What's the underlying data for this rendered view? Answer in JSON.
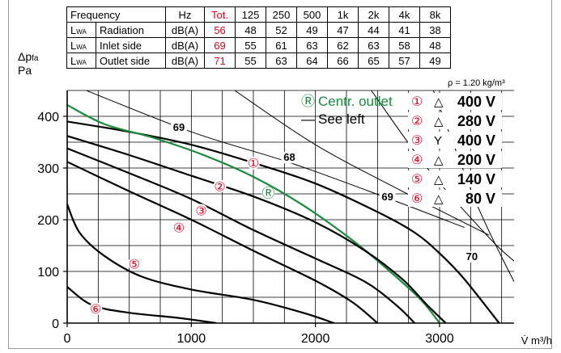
{
  "table": {
    "header": {
      "frequency": "Frequency",
      "unit": "Hz",
      "total": "Tot.",
      "bands": [
        "125",
        "250",
        "500",
        "1k",
        "2k",
        "4k",
        "8k"
      ]
    },
    "rows": [
      {
        "symbol": "L",
        "sub": "WA",
        "label": "Radiation",
        "unit": "dB(A)",
        "total": "56",
        "values": [
          "48",
          "52",
          "49",
          "47",
          "44",
          "41",
          "38"
        ]
      },
      {
        "symbol": "L",
        "sub": "WA",
        "label": "Inlet side",
        "unit": "dB(A)",
        "total": "69",
        "values": [
          "55",
          "61",
          "63",
          "62",
          "63",
          "58",
          "48"
        ]
      },
      {
        "symbol": "L",
        "sub": "WA",
        "label": "Outlet side",
        "unit": "dB(A)",
        "total": "71",
        "values": [
          "55",
          "63",
          "64",
          "66",
          "65",
          "57",
          "49"
        ]
      }
    ]
  },
  "density_note": "ρ = 1.20 kg/m³",
  "chart_data": {
    "type": "line",
    "ylabel_main": "Δp",
    "ylabel_sub": "fa",
    "ylabel_unit": "Pa",
    "xlabel": "V̇ m³/h",
    "xlim": [
      0,
      3600
    ],
    "ylim": [
      0,
      450
    ],
    "xticks": [
      0,
      1000,
      2000,
      3000
    ],
    "yticks": [
      0,
      100,
      200,
      300,
      400
    ],
    "grid": true,
    "legend": [
      {
        "mark": "Ⓡ",
        "text": "Centr. outlet",
        "color": "#1a8a3c"
      },
      {
        "mark": "—",
        "text": "See left",
        "color": "#000000"
      }
    ],
    "speeds": [
      {
        "num": "①",
        "symbol": "△",
        "voltage": "400 V"
      },
      {
        "num": "②",
        "symbol": "△",
        "voltage": "280 V"
      },
      {
        "num": "③",
        "symbol": "Y",
        "voltage": "400 V"
      },
      {
        "num": "④",
        "symbol": "△",
        "voltage": "200 V"
      },
      {
        "num": "⑤",
        "symbol": "△",
        "voltage": "140 V"
      },
      {
        "num": "⑥",
        "symbol": "△",
        "voltage": "80 V"
      }
    ],
    "series": [
      {
        "id": "1",
        "color": "#000000",
        "x": [
          0,
          500,
          1000,
          1500,
          2000,
          2500,
          2800,
          3000,
          3200,
          3480
        ],
        "y": [
          390,
          370,
          345,
          310,
          270,
          215,
          175,
          135,
          85,
          0
        ]
      },
      {
        "id": "centr",
        "color": "#1a8a3c",
        "x": [
          0,
          300,
          700,
          1100,
          1500,
          1900,
          2300,
          2600,
          2850,
          3000
        ],
        "y": [
          422,
          385,
          358,
          325,
          283,
          228,
          160,
          100,
          45,
          0
        ]
      },
      {
        "id": "2",
        "color": "#000000",
        "x": [
          0,
          500,
          1000,
          1500,
          2000,
          2400,
          2700,
          2900,
          3050
        ],
        "y": [
          362,
          325,
          285,
          245,
          195,
          140,
          85,
          35,
          0
        ]
      },
      {
        "id": "3",
        "color": "#000000",
        "x": [
          0,
          500,
          1000,
          1500,
          2000,
          2400,
          2650,
          2800
        ],
        "y": [
          338,
          290,
          240,
          180,
          125,
          80,
          35,
          0
        ]
      },
      {
        "id": "4",
        "color": "#000000",
        "x": [
          0,
          500,
          1000,
          1500,
          2000,
          2300,
          2500
        ],
        "y": [
          312,
          255,
          200,
          140,
          82,
          40,
          0
        ]
      },
      {
        "id": "5",
        "color": "#000000",
        "x": [
          0,
          100,
          300,
          600,
          1000,
          1500,
          1900,
          2150
        ],
        "y": [
          230,
          175,
          130,
          90,
          65,
          45,
          20,
          0
        ]
      },
      {
        "id": "6",
        "color": "#000000",
        "x": [
          0,
          200,
          500,
          900,
          1200
        ],
        "y": [
          70,
          35,
          20,
          10,
          0
        ]
      }
    ],
    "circled_labels": [
      {
        "text": "①",
        "x": 1500,
        "y": 310,
        "color": "#e2001a"
      },
      {
        "text": "②",
        "x": 1230,
        "y": 265,
        "color": "#e2001a"
      },
      {
        "text": "③",
        "x": 1080,
        "y": 218,
        "color": "#e2001a"
      },
      {
        "text": "④",
        "x": 900,
        "y": 185,
        "color": "#e2001a"
      },
      {
        "text": "⑤",
        "x": 540,
        "y": 115,
        "color": "#e2001a"
      },
      {
        "text": "⑥",
        "x": 230,
        "y": 28,
        "color": "#e2001a"
      },
      {
        "text": "Ⓡ",
        "x": 1620,
        "y": 252,
        "color": "#1a8a3c"
      }
    ],
    "iso_lines": [
      {
        "label": "69",
        "x": [
          0,
          1000,
          1800,
          2600,
          3200
        ],
        "y": [
          465,
          370,
          310,
          240,
          185
        ]
      },
      {
        "label": "68",
        "x": [
          1350,
          2000,
          2700,
          3400
        ],
        "y": [
          450,
          345,
          255,
          170
        ]
      },
      {
        "label": "69",
        "x": [
          2450,
          2900,
          3400,
          3600
        ],
        "y": [
          450,
          300,
          165,
          120
        ]
      },
      {
        "label": "70",
        "x": [
          2950,
          3300,
          3600
        ],
        "y": [
          450,
          230,
          80
        ]
      }
    ],
    "iso_label_pos": [
      {
        "label": "69",
        "x": 900,
        "y": 375
      },
      {
        "label": "68",
        "x": 1790,
        "y": 317
      },
      {
        "label": "69",
        "x": 2580,
        "y": 241
      },
      {
        "label": "70",
        "x": 3260,
        "y": 125
      }
    ]
  }
}
